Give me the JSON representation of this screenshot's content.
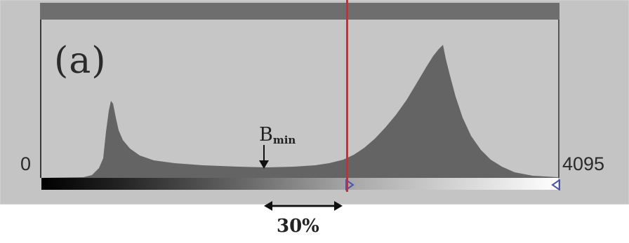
{
  "figure": {
    "panel_label": "(a)",
    "axis_min_label": "0",
    "axis_max_label": "4095",
    "marker_base": "B",
    "marker_sub": "min",
    "range_label": "30%"
  },
  "colors": {
    "panel_bg": "#c4c4c4",
    "histogram_fill": "#646464",
    "top_bar": "#6e6e6e",
    "threshold_line": "#e8202a",
    "handle": "#4a56a8"
  },
  "icons": {
    "threshold_handle": "triangle-marker-icon",
    "max_handle": "triangle-marker-icon",
    "bmin_arrow": "down-arrow-icon",
    "range_arrow": "double-arrow-icon"
  }
}
